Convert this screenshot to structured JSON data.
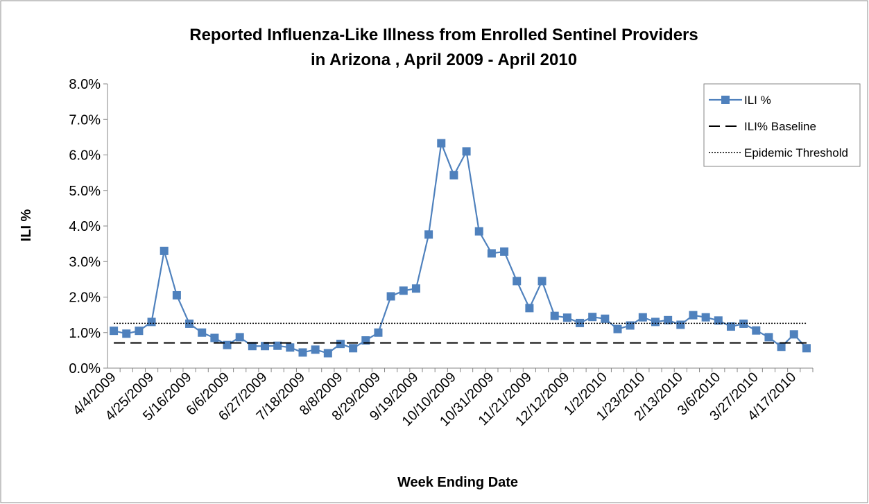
{
  "chart_data": {
    "type": "line",
    "title": "Reported Influenza-Like Illness from Enrolled Sentinel Providers",
    "subtitle": "in Arizona , April 2009 - April 2010",
    "x_label": "Week Ending Date",
    "y_label": "ILI %",
    "categories": [
      "4/4/2009",
      null,
      null,
      "4/25/2009",
      null,
      null,
      "5/16/2009",
      null,
      null,
      "6/6/2009",
      null,
      null,
      "6/27/2009",
      null,
      null,
      "7/18/2009",
      null,
      null,
      "8/8/2009",
      null,
      null,
      "8/29/2009",
      null,
      null,
      "9/19/2009",
      null,
      null,
      "10/10/2009",
      null,
      null,
      "10/31/2009",
      null,
      null,
      "11/21/2009",
      null,
      null,
      "12/12/2009",
      null,
      null,
      "1/2/2010",
      null,
      null,
      "1/23/2010",
      null,
      null,
      "2/13/2010",
      null,
      null,
      "3/6/2010",
      null,
      null,
      "3/27/2010",
      null,
      null,
      "4/17/2010",
      null
    ],
    "series": [
      {
        "name": "ILI %",
        "color": "#4f81bd",
        "style": "solid-markers",
        "values": [
          1.05,
          0.97,
          1.05,
          1.3,
          3.3,
          2.05,
          1.25,
          1.0,
          0.85,
          0.65,
          0.87,
          0.62,
          0.62,
          0.63,
          0.58,
          0.44,
          0.52,
          0.42,
          0.68,
          0.56,
          0.78,
          1.0,
          2.02,
          2.18,
          2.24,
          3.76,
          6.33,
          5.43,
          6.1,
          3.85,
          3.23,
          3.28,
          2.45,
          1.69,
          2.45,
          1.47,
          1.42,
          1.27,
          1.44,
          1.39,
          1.1,
          1.2,
          1.43,
          1.3,
          1.35,
          1.22,
          1.49,
          1.43,
          1.34,
          1.17,
          1.25,
          1.06,
          0.87,
          0.6,
          0.95,
          0.56
        ]
      },
      {
        "name": "ILI% Baseline",
        "color": "#000000",
        "style": "dashed",
        "values": [
          0.71,
          0.71,
          0.71,
          0.71,
          0.71,
          0.71,
          0.71,
          0.71,
          0.71,
          0.71,
          0.71,
          0.71,
          0.71,
          0.71,
          0.71,
          0.71,
          0.71,
          0.71,
          0.71,
          0.71,
          0.71,
          0.71,
          0.71,
          0.71,
          0.71,
          0.71,
          0.71,
          0.71,
          0.71,
          0.71,
          0.71,
          0.71,
          0.71,
          0.71,
          0.71,
          0.71,
          0.71,
          0.71,
          0.71,
          0.71,
          0.71,
          0.71,
          0.71,
          0.71,
          0.71,
          0.71,
          0.71,
          0.71,
          0.71,
          0.71,
          0.71,
          0.71,
          0.71,
          0.71,
          0.71,
          0.71
        ]
      },
      {
        "name": "Epidemic Threshold",
        "color": "#000000",
        "style": "dotted",
        "values": [
          1.26,
          1.26,
          1.26,
          1.26,
          1.26,
          1.26,
          1.26,
          1.26,
          1.26,
          1.26,
          1.26,
          1.26,
          1.26,
          1.26,
          1.26,
          1.26,
          1.26,
          1.26,
          1.26,
          1.26,
          1.26,
          1.26,
          1.26,
          1.26,
          1.26,
          1.26,
          1.26,
          1.26,
          1.26,
          1.26,
          1.26,
          1.26,
          1.26,
          1.26,
          1.26,
          1.26,
          1.26,
          1.26,
          1.26,
          1.26,
          1.26,
          1.26,
          1.26,
          1.26,
          1.26,
          1.26,
          1.26,
          1.26,
          1.26,
          1.26,
          1.26,
          1.26,
          1.26,
          1.26,
          1.26,
          1.26
        ]
      }
    ],
    "ylim": [
      0,
      8
    ],
    "yticks": [
      {
        "value": 0,
        "label": "0.0%"
      },
      {
        "value": 1,
        "label": "1.0%"
      },
      {
        "value": 2,
        "label": "2.0%"
      },
      {
        "value": 3,
        "label": "3.0%"
      },
      {
        "value": 4,
        "label": "4.0%"
      },
      {
        "value": 5,
        "label": "5.0%"
      },
      {
        "value": 6,
        "label": "6.0%"
      },
      {
        "value": 7,
        "label": "7.0%"
      },
      {
        "value": 8,
        "label": "8.0%"
      }
    ],
    "grid": false,
    "legend": "top-right"
  }
}
